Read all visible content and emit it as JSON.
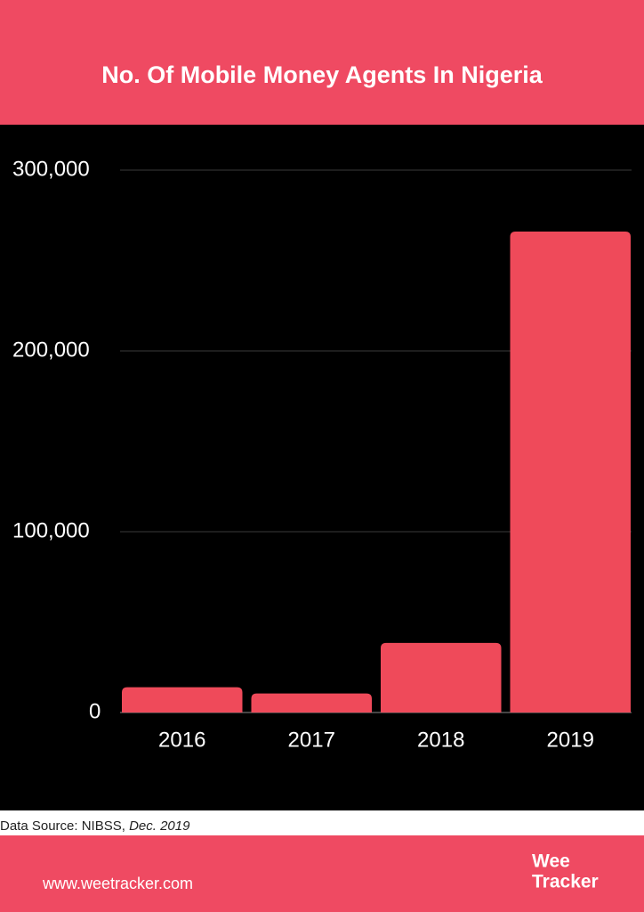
{
  "chart_data": {
    "type": "bar",
    "title": "No. Of Mobile Money Agents In Nigeria",
    "categories": [
      "2016",
      "2017",
      "2018",
      "2019"
    ],
    "values": [
      14000,
      10500,
      38500,
      266000
    ],
    "color": "#ef4a5a",
    "ylim": [
      0,
      300000
    ],
    "yticks": [
      0,
      {
        "value": 100000,
        "label": "100,000"
      },
      {
        "value": 200000,
        "label": "200,000"
      },
      {
        "value": 300000,
        "label": "300,000"
      }
    ],
    "grid": true
  },
  "source": {
    "text": "Data Source: NIBSS,",
    "date": "Dec. 2019"
  },
  "footer": {
    "url": "www.weetracker.com",
    "logo_top": "Wee",
    "logo_bottom": "Tracker"
  }
}
